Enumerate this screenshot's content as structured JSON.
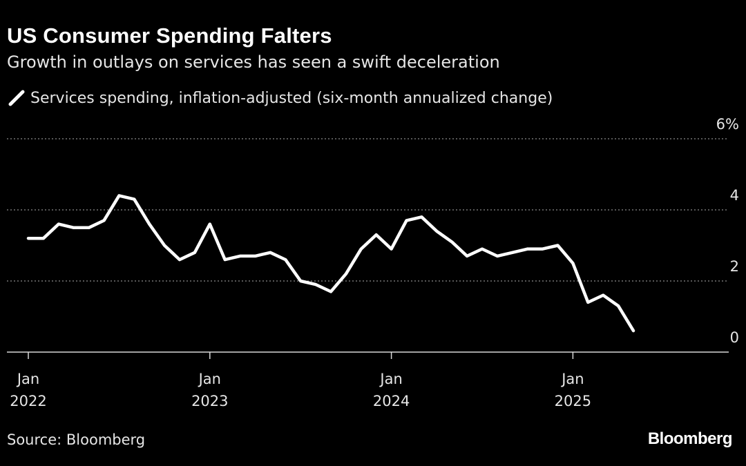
{
  "title": "US Consumer Spending Falters",
  "subtitle": "Growth in outlays on services has seen a swift deceleration",
  "source": "Source: Bloomberg",
  "brand": "Bloomberg",
  "colors": {
    "background": "#000000",
    "line": "#ffffff",
    "grid": "#8c8c8c",
    "text": "#e6e6e6"
  },
  "chart_data": {
    "type": "line",
    "y_axis_side": "right",
    "ylim": [
      0,
      6
    ],
    "y_ticks": [
      {
        "value": 6,
        "label": "6%"
      },
      {
        "value": 4,
        "label": "4"
      },
      {
        "value": 2,
        "label": "2"
      },
      {
        "value": 0,
        "label": "0"
      }
    ],
    "x_ticks": [
      {
        "month_index": 0,
        "line1": "Jan",
        "line2": "2022"
      },
      {
        "month_index": 12,
        "line1": "Jan",
        "line2": "2023"
      },
      {
        "month_index": 24,
        "line1": "Jan",
        "line2": "2024"
      },
      {
        "month_index": 36,
        "line1": "Jan",
        "line2": "2025"
      }
    ],
    "grid": "dotted horizontal",
    "legend_position": "top-left",
    "series": [
      {
        "name": "Services spending, inflation-adjusted (six-month annualized change)",
        "x": [
          "2022-01",
          "2022-02",
          "2022-03",
          "2022-04",
          "2022-05",
          "2022-06",
          "2022-07",
          "2022-08",
          "2022-09",
          "2022-10",
          "2022-11",
          "2022-12",
          "2023-01",
          "2023-02",
          "2023-03",
          "2023-04",
          "2023-05",
          "2023-06",
          "2023-07",
          "2023-08",
          "2023-09",
          "2023-10",
          "2023-11",
          "2023-12",
          "2024-01",
          "2024-02",
          "2024-03",
          "2024-04",
          "2024-05",
          "2024-06",
          "2024-07",
          "2024-08",
          "2024-09",
          "2024-10",
          "2024-11",
          "2024-12",
          "2025-01",
          "2025-02",
          "2025-03",
          "2025-04",
          "2025-05"
        ],
        "values": [
          3.2,
          3.2,
          3.6,
          3.5,
          3.5,
          3.7,
          4.4,
          4.3,
          3.6,
          3.0,
          2.6,
          2.8,
          3.6,
          2.6,
          2.7,
          2.7,
          2.8,
          2.6,
          2.0,
          1.9,
          1.7,
          2.2,
          2.9,
          3.3,
          2.9,
          3.7,
          3.8,
          3.4,
          3.1,
          2.7,
          2.9,
          2.7,
          2.8,
          2.9,
          2.9,
          3.0,
          2.5,
          1.4,
          1.6,
          1.3,
          0.6
        ]
      }
    ]
  }
}
